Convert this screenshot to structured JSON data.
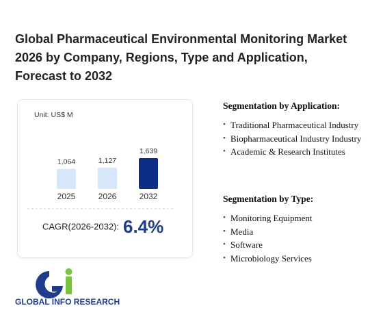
{
  "title": "Global Pharmaceutical Environmental Monitoring Market 2026 by Company, Regions, Type and Application, Forecast to 2032",
  "chart_data": {
    "type": "bar",
    "unit": "Unit: US$ M",
    "categories": [
      "2025",
      "2026",
      "2032"
    ],
    "values": [
      1064,
      1127,
      1639
    ],
    "value_labels": [
      "1,064",
      "1,127",
      "1,639"
    ],
    "colors": [
      "#d6e6fb",
      "#d6e6fb",
      "#0e2d87"
    ]
  },
  "cagr": {
    "label": "CAGR(2026-2032):",
    "value": "6.4%"
  },
  "segmentation_application": {
    "heading": "Segmentation by Application:",
    "items": [
      "Traditional Pharmaceutical Industry",
      "Biopharmaceutical Industry Industry",
      "Academic & Research Institutes"
    ]
  },
  "segmentation_type": {
    "heading": "Segmentation by Type:",
    "items": [
      "Monitoring Equipment",
      "Media",
      "Software",
      "Microbiology Services"
    ]
  },
  "logo": "GLOBAL INFO RESEARCH"
}
